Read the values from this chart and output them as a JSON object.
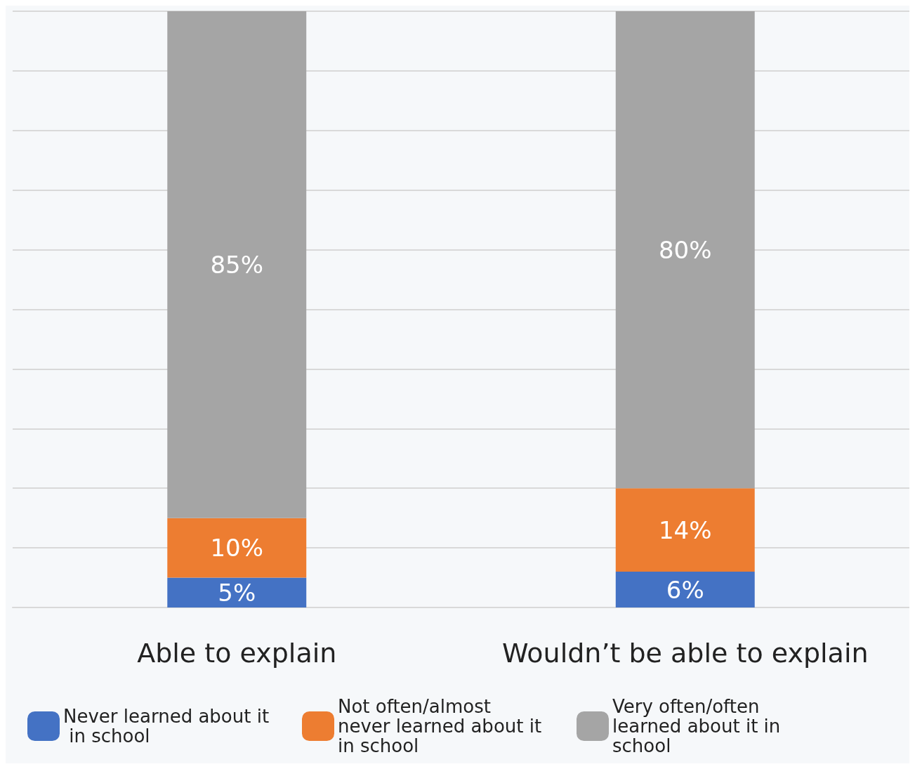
{
  "chart_data": {
    "type": "bar",
    "stacked": true,
    "categories": [
      "Able to explain",
      "Wouldn’t be able to explain"
    ],
    "series": [
      {
        "name": "Never learned about it in school",
        "color": "#4472c4",
        "values": [
          5,
          6
        ],
        "value_labels": [
          "5%",
          "6%"
        ]
      },
      {
        "name": "Not often/almost never learned about it in school",
        "color": "#ed7d31",
        "values": [
          10,
          14
        ],
        "value_labels": [
          "10%",
          "14%"
        ]
      },
      {
        "name": "Very often/often learned about it in school",
        "color": "#a5a5a5",
        "values": [
          85,
          80
        ],
        "value_labels": [
          "85%",
          "80%"
        ]
      }
    ],
    "tick_labels": "x",
    "grid": "y",
    "legend": "bottom"
  }
}
